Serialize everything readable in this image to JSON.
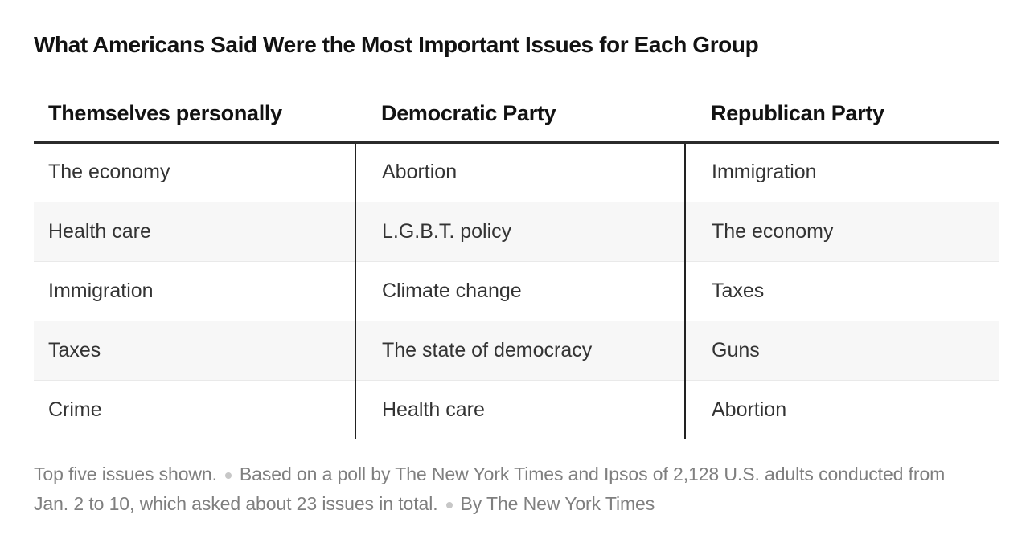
{
  "title": "What Americans Said Were the Most Important Issues for Each Group",
  "chart_data": {
    "type": "table",
    "title": "What Americans Said Were the Most Important Issues for Each Group",
    "columns": [
      "Themselves personally",
      "Democratic Party",
      "Republican Party"
    ],
    "rows": [
      [
        "The economy",
        "Abortion",
        "Immigration"
      ],
      [
        "Health care",
        "L.G.B.T. policy",
        "The economy"
      ],
      [
        "Immigration",
        "Climate change",
        "Taxes"
      ],
      [
        "Taxes",
        "The state of democracy",
        "Guns"
      ],
      [
        "Crime",
        "Health care",
        "Abortion"
      ]
    ],
    "layout_hints": {
      "zebra_striping": true,
      "column_dividers": true,
      "top_rule_under_header": true
    }
  },
  "footer": {
    "segments": [
      "Top five issues shown.",
      "Based on a poll by The New York Times and Ipsos of 2,128 U.S. adults conducted from Jan. 2 to 10, which asked about 23 issues in total.",
      "By The New York Times"
    ]
  },
  "colors": {
    "title_text": "#121212",
    "cell_text": "#333333",
    "zebra_row": "#f7f7f7",
    "row_border": "#e9e9e9",
    "header_rule": "#2b2b2b",
    "column_divider": "#222222",
    "footnote_text": "#7f7f7f",
    "footnote_bullet": "#c7c7c7"
  }
}
